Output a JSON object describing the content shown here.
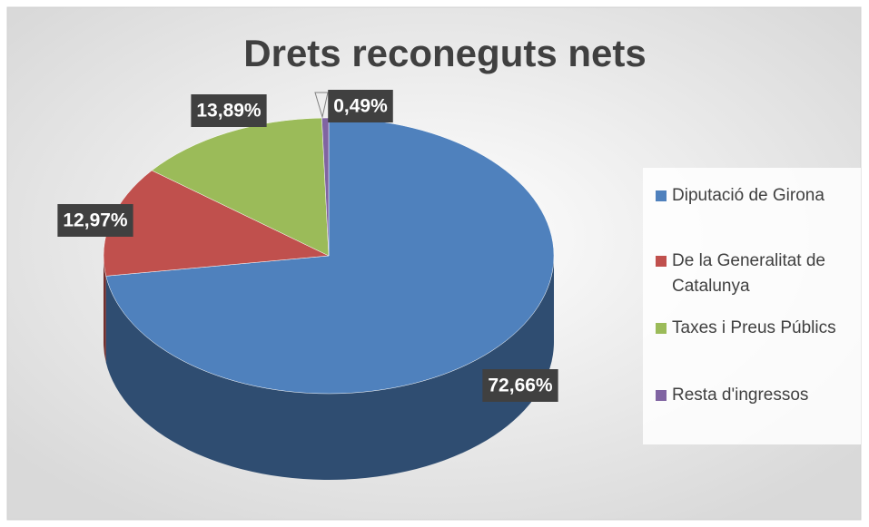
{
  "chart_data": {
    "type": "pie",
    "title": "Drets reconeguts nets",
    "categories": [
      "Diputació de Girona",
      "De la Generalitat de Catalunya",
      "Taxes i Preus Públics",
      "Resta d'ingressos"
    ],
    "values": [
      72.66,
      12.97,
      13.89,
      0.49
    ],
    "value_labels": [
      "72,66%",
      "12,97%",
      "13,89%",
      "0,49%"
    ],
    "colors": [
      "#4f81bd",
      "#c0504d",
      "#9bbb59",
      "#8064a2"
    ],
    "legend": "right"
  }
}
